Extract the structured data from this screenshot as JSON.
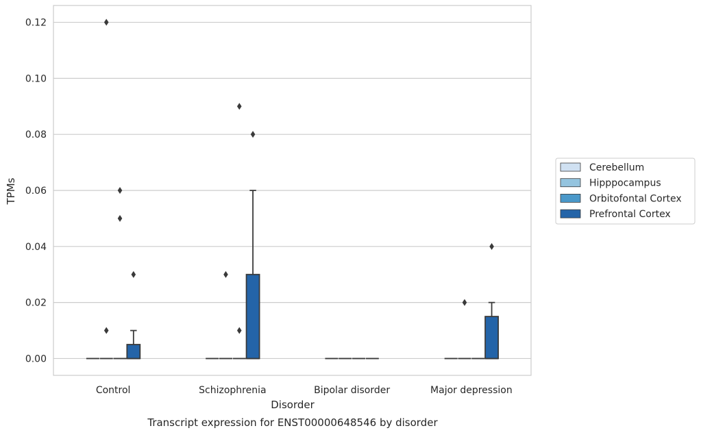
{
  "chart_data": {
    "type": "box",
    "title": "",
    "caption": "Transcript expression for ENST00000648546 by disorder",
    "xlabel": "Disorder",
    "ylabel": "TPMs",
    "ylim": [
      -0.006,
      0.126
    ],
    "yticks": [
      0.0,
      0.02,
      0.04,
      0.06,
      0.08,
      0.1,
      0.12
    ],
    "ytick_labels": [
      "0.00",
      "0.02",
      "0.04",
      "0.06",
      "0.08",
      "0.10",
      "0.12"
    ],
    "grid": "horizontal",
    "legend_position": "right",
    "categories": [
      "Control",
      "Schizophrenia",
      "Bipolar disorder",
      "Major depression"
    ],
    "series": [
      {
        "name": "Cerebellum",
        "color": "#d0e1f2",
        "boxes": [
          {
            "q1": 0,
            "median": 0,
            "q3": 0,
            "whisker_low": 0,
            "whisker_high": 0,
            "outliers": []
          },
          {
            "q1": 0,
            "median": 0,
            "q3": 0,
            "whisker_low": 0,
            "whisker_high": 0,
            "outliers": []
          },
          {
            "q1": 0,
            "median": 0,
            "q3": 0,
            "whisker_low": 0,
            "whisker_high": 0,
            "outliers": []
          },
          {
            "q1": 0,
            "median": 0,
            "q3": 0,
            "whisker_low": 0,
            "whisker_high": 0,
            "outliers": []
          }
        ]
      },
      {
        "name": "Hipppocampus",
        "color": "#94c4df",
        "boxes": [
          {
            "q1": 0,
            "median": 0,
            "q3": 0,
            "whisker_low": 0,
            "whisker_high": 0,
            "outliers": [
              0.12,
              0.01
            ]
          },
          {
            "q1": 0,
            "median": 0,
            "q3": 0,
            "whisker_low": 0,
            "whisker_high": 0,
            "outliers": [
              0.03
            ]
          },
          {
            "q1": 0,
            "median": 0,
            "q3": 0,
            "whisker_low": 0,
            "whisker_high": 0,
            "outliers": []
          },
          {
            "q1": 0,
            "median": 0,
            "q3": 0,
            "whisker_low": 0,
            "whisker_high": 0,
            "outliers": [
              0.02
            ]
          }
        ]
      },
      {
        "name": "Orbitofontal Cortex",
        "color": "#4a98c9",
        "boxes": [
          {
            "q1": 0,
            "median": 0,
            "q3": 0,
            "whisker_low": 0,
            "whisker_high": 0,
            "outliers": [
              0.06,
              0.05
            ]
          },
          {
            "q1": 0,
            "median": 0,
            "q3": 0,
            "whisker_low": 0,
            "whisker_high": 0,
            "outliers": [
              0.09,
              0.01
            ]
          },
          {
            "q1": 0,
            "median": 0,
            "q3": 0,
            "whisker_low": 0,
            "whisker_high": 0,
            "outliers": []
          },
          {
            "q1": 0,
            "median": 0,
            "q3": 0,
            "whisker_low": 0,
            "whisker_high": 0,
            "outliers": []
          }
        ]
      },
      {
        "name": "Prefrontal Cortex",
        "color": "#2464a8",
        "boxes": [
          {
            "q1": 0,
            "median": 0,
            "q3": 0.005,
            "whisker_low": 0,
            "whisker_high": 0.01,
            "outliers": [
              0.03
            ]
          },
          {
            "q1": 0,
            "median": 0,
            "q3": 0.03,
            "whisker_low": 0,
            "whisker_high": 0.06,
            "outliers": [
              0.08
            ]
          },
          {
            "q1": 0,
            "median": 0,
            "q3": 0,
            "whisker_low": 0,
            "whisker_high": 0,
            "outliers": []
          },
          {
            "q1": 0,
            "median": 0,
            "q3": 0.015,
            "whisker_low": 0,
            "whisker_high": 0.02,
            "outliers": [
              0.04
            ]
          }
        ]
      }
    ]
  }
}
